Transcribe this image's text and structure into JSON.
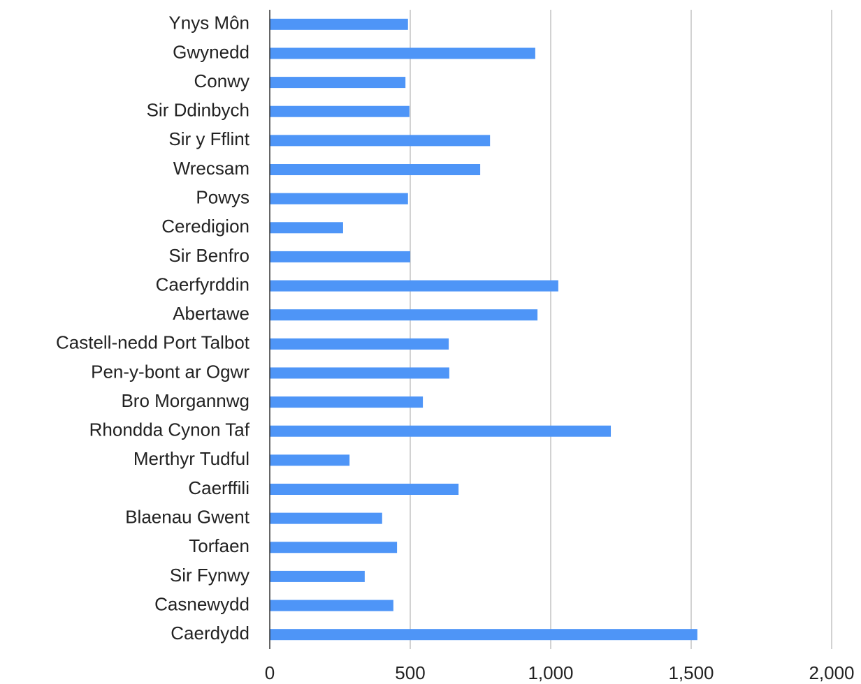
{
  "chart_data": {
    "type": "hbar",
    "categories": [
      "Ynys Môn",
      "Gwynedd",
      "Conwy",
      "Sir Ddinbych",
      "Sir y Fflint",
      "Wrecsam",
      "Powys",
      "Ceredigion",
      "Sir Benfro",
      "Caerfyrddin",
      "Abertawe",
      "Castell-nedd Port Talbot",
      "Pen-y-bont ar Ogwr",
      "Bro Morgannwg",
      "Rhondda Cynon Taf",
      "Merthyr Tudful",
      "Caerffili",
      "Blaenau Gwent",
      "Torfaen",
      "Sir Fynwy",
      "Casnewydd",
      "Caerdydd"
    ],
    "values": [
      492,
      945,
      483,
      497,
      784,
      749,
      492,
      261,
      500,
      1027,
      953,
      637,
      639,
      545,
      1214,
      284,
      672,
      400,
      453,
      338,
      440,
      1522
    ],
    "color": "#4e95f7",
    "xlim": [
      0,
      2000
    ],
    "xticks": [
      0,
      500,
      {
        "value": 1000,
        "label": "1,000"
      },
      {
        "value": 1500,
        "label": "1,500"
      },
      {
        "value": 2000,
        "label": "2,000"
      }
    ],
    "grid": true
  }
}
